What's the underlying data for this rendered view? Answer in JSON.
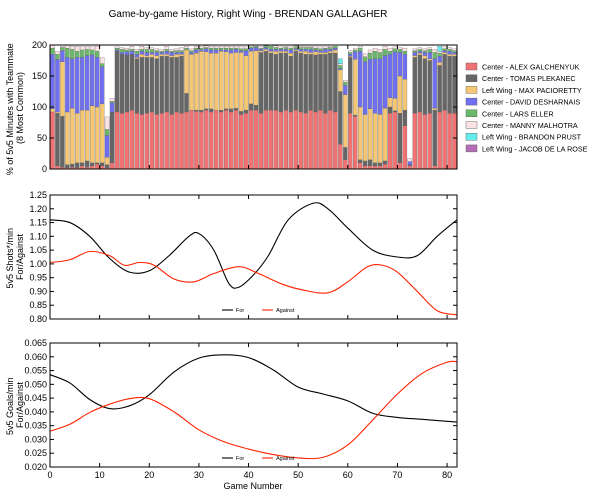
{
  "title": "Game-by-game History, Right Wing - BRENDAN GALLAGHER",
  "chart_data": [
    {
      "type": "bar",
      "stacked": true,
      "ylabel": "% of 5v5 Minutes with Teammate\n(8 Most Common)",
      "ylim": [
        0,
        200
      ],
      "yticks": [
        "0",
        "50",
        "100",
        "150",
        "200"
      ],
      "xlim": [
        0,
        82
      ],
      "grid": false,
      "legend_position": "right",
      "series": [
        {
          "name": "Center - ALEX GALCHENYUK",
          "color": "#f07272"
        },
        {
          "name": "Center - TOMAS PLEKANEC",
          "color": "#666666"
        },
        {
          "name": "Left Wing - MAX PACIORETTY",
          "color": "#f5c774"
        },
        {
          "name": "Center - DAVID DESHARNAIS",
          "color": "#6f6ff0"
        },
        {
          "name": "Center - LARS ELLER",
          "color": "#6ab86a"
        },
        {
          "name": "Center - MANNY MALHOTRA",
          "color": "#fbe3e3"
        },
        {
          "name": "Left Wing - BRANDON PRUST",
          "color": "#66ecec"
        },
        {
          "name": "Left Wing - JACOB DE LA ROSE",
          "color": "#b56db5"
        }
      ],
      "games": [
        [
          92,
          0,
          5,
          88,
          10,
          5,
          0,
          0
        ],
        [
          5,
          85,
          2,
          85,
          8,
          5,
          0,
          0
        ],
        [
          3,
          82,
          88,
          18,
          5,
          2,
          0,
          0
        ],
        [
          2,
          5,
          85,
          88,
          15,
          5,
          0,
          0
        ],
        [
          3,
          5,
          90,
          80,
          15,
          5,
          0,
          0
        ],
        [
          2,
          8,
          80,
          90,
          10,
          8,
          0,
          0
        ],
        [
          5,
          5,
          85,
          85,
          12,
          5,
          0,
          0
        ],
        [
          3,
          10,
          82,
          88,
          10,
          5,
          0,
          0
        ],
        [
          5,
          5,
          92,
          82,
          8,
          5,
          0,
          0
        ],
        [
          8,
          2,
          90,
          80,
          10,
          8,
          0,
          0
        ],
        [
          5,
          5,
          95,
          60,
          5,
          10,
          0,
          0
        ],
        [
          2,
          5,
          12,
          35,
          10,
          20,
          0,
          0
        ],
        [
          10,
          82,
          0,
          15,
          2,
          5,
          0,
          0
        ],
        [
          92,
          98,
          0,
          2,
          3,
          2,
          0,
          0
        ],
        [
          90,
          95,
          0,
          3,
          5,
          3,
          0,
          0
        ],
        [
          92,
          92,
          0,
          5,
          3,
          3,
          0,
          0
        ],
        [
          95,
          90,
          0,
          5,
          3,
          5,
          0,
          0
        ],
        [
          90,
          88,
          2,
          5,
          5,
          3,
          0,
          0
        ],
        [
          88,
          92,
          5,
          5,
          3,
          5,
          0,
          0
        ],
        [
          90,
          90,
          3,
          5,
          5,
          3,
          0,
          0
        ],
        [
          92,
          88,
          5,
          3,
          5,
          3,
          0,
          0
        ],
        [
          88,
          90,
          5,
          5,
          3,
          3,
          0,
          0
        ],
        [
          90,
          92,
          3,
          3,
          2,
          3,
          0,
          0
        ],
        [
          92,
          90,
          3,
          5,
          3,
          5,
          0,
          0
        ],
        [
          88,
          92,
          3,
          5,
          2,
          3,
          0,
          0
        ],
        [
          92,
          88,
          5,
          3,
          3,
          3,
          0,
          0
        ],
        [
          90,
          92,
          3,
          3,
          3,
          5,
          0,
          0
        ],
        [
          92,
          30,
          70,
          0,
          3,
          3,
          0,
          0
        ],
        [
          95,
          0,
          90,
          3,
          3,
          3,
          0,
          0
        ],
        [
          93,
          2,
          92,
          5,
          3,
          3,
          0,
          0
        ],
        [
          92,
          3,
          95,
          2,
          3,
          3,
          0,
          0
        ],
        [
          95,
          2,
          92,
          5,
          2,
          3,
          0,
          0
        ],
        [
          92,
          5,
          90,
          5,
          3,
          3,
          0,
          0
        ],
        [
          95,
          0,
          92,
          5,
          3,
          3,
          0,
          0
        ],
        [
          92,
          3,
          95,
          2,
          3,
          3,
          0,
          0
        ],
        [
          95,
          2,
          92,
          3,
          3,
          3,
          0,
          0
        ],
        [
          92,
          5,
          90,
          5,
          3,
          3,
          0,
          0
        ],
        [
          95,
          3,
          90,
          5,
          2,
          3,
          0,
          0
        ],
        [
          88,
          5,
          95,
          3,
          3,
          3,
          0,
          0
        ],
        [
          90,
          5,
          88,
          8,
          3,
          3,
          0,
          0
        ],
        [
          95,
          10,
          85,
          5,
          2,
          3,
          0,
          0
        ],
        [
          95,
          8,
          88,
          5,
          2,
          2,
          0,
          0
        ],
        [
          90,
          98,
          3,
          2,
          2,
          2,
          0,
          0
        ],
        [
          95,
          95,
          3,
          3,
          3,
          3,
          0,
          0
        ],
        [
          95,
          92,
          3,
          3,
          5,
          2,
          0,
          0
        ],
        [
          95,
          90,
          5,
          3,
          3,
          3,
          0,
          0
        ],
        [
          92,
          95,
          3,
          3,
          2,
          2,
          0,
          0
        ],
        [
          95,
          92,
          3,
          3,
          3,
          2,
          0,
          0
        ],
        [
          92,
          90,
          5,
          5,
          3,
          2,
          0,
          0
        ],
        [
          95,
          95,
          2,
          2,
          3,
          2,
          0,
          0
        ],
        [
          92,
          95,
          3,
          3,
          3,
          2,
          0,
          0
        ],
        [
          90,
          95,
          5,
          3,
          3,
          2,
          0,
          0
        ],
        [
          95,
          90,
          3,
          5,
          3,
          2,
          0,
          0
        ],
        [
          92,
          92,
          5,
          3,
          3,
          2,
          0,
          0
        ],
        [
          95,
          90,
          3,
          3,
          3,
          3,
          0,
          0
        ],
        [
          90,
          95,
          3,
          5,
          2,
          2,
          0,
          0
        ],
        [
          95,
          92,
          3,
          3,
          3,
          2,
          0,
          0
        ],
        [
          92,
          95,
          5,
          3,
          3,
          0,
          0,
          0
        ],
        [
          40,
          85,
          35,
          2,
          5,
          3,
          8,
          0
        ],
        [
          15,
          20,
          85,
          15,
          5,
          3,
          0,
          0
        ],
        [
          90,
          90,
          2,
          3,
          3,
          3,
          0,
          0
        ],
        [
          85,
          2,
          90,
          12,
          3,
          3,
          0,
          0
        ],
        [
          10,
          5,
          85,
          90,
          5,
          3,
          0,
          0
        ],
        [
          5,
          8,
          75,
          85,
          8,
          5,
          0,
          0
        ],
        [
          5,
          10,
          82,
          80,
          10,
          5,
          0,
          0
        ],
        [
          5,
          5,
          80,
          88,
          12,
          5,
          0,
          0
        ],
        [
          5,
          5,
          78,
          90,
          10,
          5,
          0,
          0
        ],
        [
          8,
          5,
          85,
          85,
          10,
          5,
          0,
          0
        ],
        [
          90,
          10,
          15,
          70,
          5,
          5,
          0,
          0
        ],
        [
          92,
          2,
          20,
          75,
          5,
          3,
          0,
          0
        ],
        [
          10,
          80,
          60,
          38,
          5,
          3,
          0,
          0
        ],
        [
          70,
          25,
          50,
          40,
          5,
          5,
          0,
          0
        ],
        [
          5,
          2,
          0,
          5,
          0,
          5,
          0,
          0
        ],
        [
          90,
          90,
          3,
          5,
          3,
          3,
          0,
          0
        ],
        [
          92,
          92,
          3,
          3,
          3,
          3,
          0,
          0
        ],
        [
          88,
          90,
          5,
          5,
          3,
          3,
          0,
          0
        ],
        [
          90,
          85,
          3,
          10,
          5,
          3,
          0,
          0
        ],
        [
          5,
          90,
          3,
          80,
          10,
          5,
          0,
          0
        ],
        [
          92,
          75,
          5,
          10,
          5,
          3,
          8,
          0
        ],
        [
          95,
          90,
          3,
          3,
          3,
          3,
          0,
          0
        ],
        [
          90,
          92,
          3,
          5,
          3,
          3,
          0,
          0
        ],
        [
          90,
          92,
          3,
          3,
          3,
          3,
          0,
          0
        ]
      ]
    },
    {
      "type": "line",
      "ylabel": "5v5 Shots*/min\nFor/Against",
      "ylim": [
        0.8,
        1.25
      ],
      "yticks": [
        "0.80",
        "0.85",
        "0.90",
        "0.95",
        "1.00",
        "1.05",
        "1.10",
        "1.15",
        "1.20",
        "1.25"
      ],
      "xlim": [
        0,
        82
      ],
      "grid": false,
      "legend_position": "bottom-center",
      "series": [
        {
          "name": "For",
          "color": "#000000",
          "points": [
            [
              0,
              1.16
            ],
            [
              4,
              1.15
            ],
            [
              8,
              1.1
            ],
            [
              12,
              1.02
            ],
            [
              16,
              0.97
            ],
            [
              20,
              0.975
            ],
            [
              24,
              1.03
            ],
            [
              28,
              1.1
            ],
            [
              30,
              1.11
            ],
            [
              33,
              1.05
            ],
            [
              36,
              0.93
            ],
            [
              38,
              0.915
            ],
            [
              41,
              0.96
            ],
            [
              44,
              1.03
            ],
            [
              48,
              1.16
            ],
            [
              53,
              1.22
            ],
            [
              56,
              1.2
            ],
            [
              60,
              1.13
            ],
            [
              65,
              1.05
            ],
            [
              70,
              1.025
            ],
            [
              74,
              1.03
            ],
            [
              78,
              1.1
            ],
            [
              82,
              1.16
            ]
          ]
        },
        {
          "name": "Against",
          "color": "#ff2200",
          "points": [
            [
              0,
              1.005
            ],
            [
              4,
              1.015
            ],
            [
              8,
              1.045
            ],
            [
              12,
              1.03
            ],
            [
              15,
              0.995
            ],
            [
              18,
              1.005
            ],
            [
              21,
              0.995
            ],
            [
              25,
              0.945
            ],
            [
              29,
              0.935
            ],
            [
              33,
              0.965
            ],
            [
              38,
              0.99
            ],
            [
              42,
              0.965
            ],
            [
              47,
              0.925
            ],
            [
              51,
              0.905
            ],
            [
              56,
              0.895
            ],
            [
              60,
              0.935
            ],
            [
              64,
              0.99
            ],
            [
              67,
              0.995
            ],
            [
              70,
              0.97
            ],
            [
              74,
              0.9
            ],
            [
              78,
              0.83
            ],
            [
              82,
              0.815
            ]
          ]
        }
      ]
    },
    {
      "type": "line",
      "ylabel": "5v5 Goals/min\nFor/Against",
      "xlabel": "Game Number",
      "ylim": [
        0.02,
        0.065
      ],
      "yticks": [
        "0.020",
        "0.025",
        "0.030",
        "0.035",
        "0.040",
        "0.045",
        "0.050",
        "0.055",
        "0.060",
        "0.065"
      ],
      "xlim": [
        0,
        82
      ],
      "xticks": [
        "0",
        "10",
        "20",
        "30",
        "40",
        "50",
        "60",
        "70",
        "80"
      ],
      "grid": false,
      "legend_position": "bottom-center",
      "series": [
        {
          "name": "For",
          "color": "#000000",
          "points": [
            [
              0,
              0.0535
            ],
            [
              4,
              0.0505
            ],
            [
              8,
              0.0445
            ],
            [
              12,
              0.0412
            ],
            [
              16,
              0.0422
            ],
            [
              20,
              0.0462
            ],
            [
              25,
              0.0545
            ],
            [
              30,
              0.0595
            ],
            [
              35,
              0.0607
            ],
            [
              40,
              0.0597
            ],
            [
              45,
              0.0552
            ],
            [
              50,
              0.049
            ],
            [
              55,
              0.0465
            ],
            [
              60,
              0.044
            ],
            [
              65,
              0.0395
            ],
            [
              70,
              0.038
            ],
            [
              75,
              0.0373
            ],
            [
              82,
              0.0363
            ]
          ]
        },
        {
          "name": "Against",
          "color": "#ff2200",
          "points": [
            [
              0,
              0.033
            ],
            [
              4,
              0.0355
            ],
            [
              8,
              0.0398
            ],
            [
              12,
              0.0428
            ],
            [
              16,
              0.0448
            ],
            [
              20,
              0.0448
            ],
            [
              25,
              0.04
            ],
            [
              30,
              0.0335
            ],
            [
              35,
              0.0292
            ],
            [
              40,
              0.0265
            ],
            [
              45,
              0.0245
            ],
            [
              50,
              0.0233
            ],
            [
              55,
              0.0235
            ],
            [
              60,
              0.028
            ],
            [
              65,
              0.037
            ],
            [
              70,
              0.0465
            ],
            [
              75,
              0.054
            ],
            [
              80,
              0.058
            ],
            [
              82,
              0.0582
            ]
          ]
        }
      ]
    }
  ]
}
